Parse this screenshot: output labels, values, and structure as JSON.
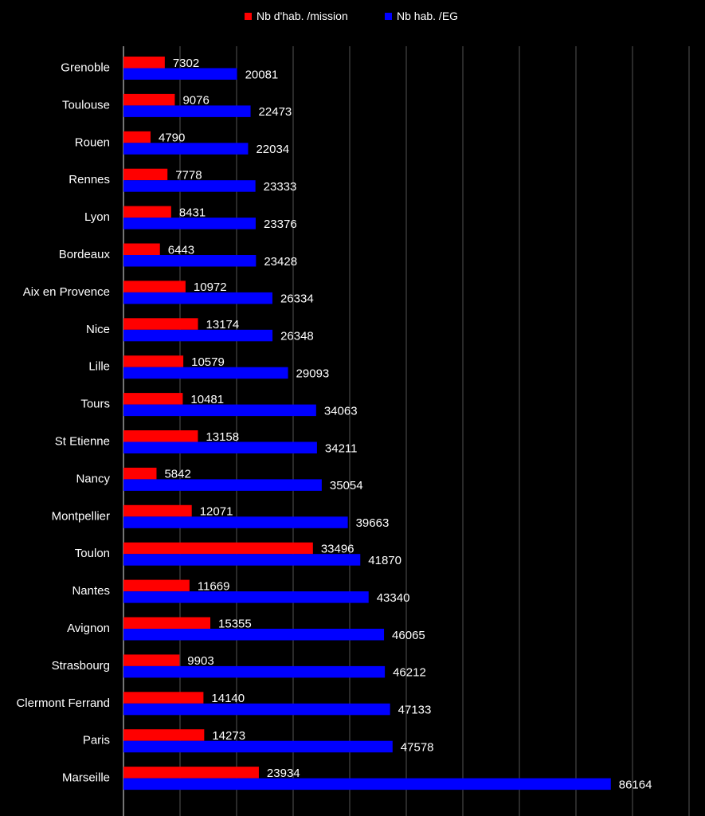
{
  "chart_data": {
    "type": "bar",
    "orientation": "horizontal",
    "categories": [
      "Grenoble",
      "Toulouse",
      "Rouen",
      "Rennes",
      "Lyon",
      "Bordeaux",
      "Aix en Provence",
      "Nice",
      "Lille",
      "Tours",
      "St Etienne",
      "Nancy",
      "Montpellier",
      "Toulon",
      "Nantes",
      "Avignon",
      "Strasbourg",
      "Clermont Ferrand",
      "Paris",
      "Marseille"
    ],
    "series": [
      {
        "name": "Nb d'hab. /mission",
        "color": "#ff0000",
        "values": [
          7302,
          9076,
          4790,
          7778,
          8431,
          6443,
          10972,
          13174,
          10579,
          10481,
          13158,
          5842,
          12071,
          33496,
          11669,
          15355,
          9903,
          14140,
          14273,
          23934
        ]
      },
      {
        "name": "Nb hab. /EG",
        "color": "#0000ff",
        "values": [
          20081,
          22473,
          22034,
          23333,
          23376,
          23428,
          26334,
          26348,
          29093,
          34063,
          34211,
          35054,
          39663,
          41870,
          43340,
          46065,
          46212,
          47133,
          47578,
          86164
        ]
      }
    ],
    "xlim": [
      0,
      100000
    ],
    "grid": true,
    "legend": "top-center",
    "background": "#000000",
    "text_color": "#ffffff",
    "grid_color": "#555555"
  }
}
